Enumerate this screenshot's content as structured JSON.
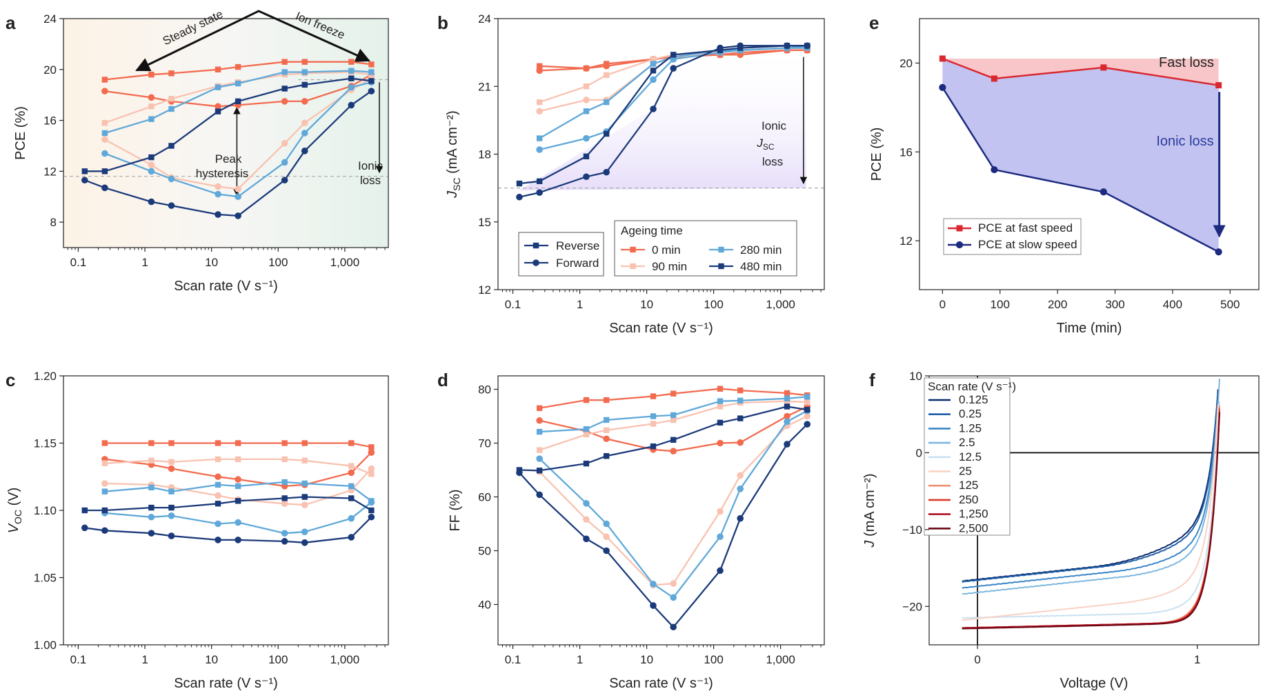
{
  "chart_data": [
    {
      "type": "line",
      "panel": "a",
      "xlabel": "Scan rate (V s⁻¹)",
      "ylabel": "PCE (%)",
      "xscale": "log",
      "xlim": [
        0.06,
        4500
      ],
      "ylim": [
        6,
        24
      ],
      "xticks": [
        0.1,
        1,
        10,
        100,
        1000
      ],
      "xticklabels": [
        "0.1",
        "1",
        "10",
        "100",
        "1,000"
      ],
      "yticks": [
        8,
        12,
        16,
        20,
        24
      ],
      "yticklabels": [
        "8",
        "12",
        "16",
        "20",
        "24"
      ],
      "x": [
        0.125,
        0.25,
        1.25,
        2.5,
        12.5,
        25,
        125,
        250,
        1250,
        2500
      ],
      "series": [
        {
          "color": "#f26b4f",
          "marker": "square",
          "values": [
            null,
            19.2,
            19.6,
            19.7,
            20.0,
            20.2,
            20.6,
            20.6,
            20.6,
            20.4
          ]
        },
        {
          "color": "#f26b4f",
          "marker": "circle",
          "values": [
            null,
            18.3,
            17.8,
            17.5,
            17.1,
            17.2,
            17.5,
            17.5,
            18.7,
            19.6
          ]
        },
        {
          "color": "#f9c2b0",
          "marker": "square",
          "values": [
            null,
            15.8,
            17.1,
            17.7,
            18.7,
            19.0,
            19.6,
            19.7,
            19.8,
            19.6
          ]
        },
        {
          "color": "#f9c2b0",
          "marker": "circle",
          "values": [
            null,
            14.5,
            12.5,
            11.5,
            10.8,
            10.6,
            14.2,
            15.8,
            18.4,
            19.3
          ]
        },
        {
          "color": "#5fa8d9",
          "marker": "square",
          "values": [
            null,
            15.0,
            16.1,
            16.9,
            18.6,
            18.9,
            19.8,
            19.8,
            19.9,
            19.8
          ]
        },
        {
          "color": "#5fa8d9",
          "marker": "circle",
          "values": [
            null,
            13.4,
            12.0,
            11.4,
            10.2,
            10.0,
            12.7,
            15.0,
            18.6,
            19.0
          ]
        },
        {
          "color": "#1b3a7a",
          "marker": "square",
          "values": [
            12.0,
            12.0,
            13.1,
            14.0,
            16.7,
            17.5,
            18.5,
            18.8,
            19.3,
            19.1
          ]
        },
        {
          "color": "#1b3a7a",
          "marker": "circle",
          "values": [
            11.3,
            10.7,
            9.6,
            9.3,
            8.6,
            8.5,
            11.3,
            13.6,
            17.2,
            18.3
          ]
        }
      ],
      "annotations": [
        "Steady state",
        "Ion freeze",
        "Peak",
        "hysteresis",
        "Ionic",
        "loss"
      ]
    },
    {
      "type": "line",
      "panel": "b",
      "xlabel": "Scan rate (V s⁻¹)",
      "ylabel_main": "J",
      "ylabel_sub": "SC",
      "ylabel_rest": " (mA cm⁻²)",
      "xscale": "log",
      "xlim": [
        0.06,
        4500
      ],
      "ylim": [
        12,
        24
      ],
      "xticks": [
        0.1,
        1,
        10,
        100,
        1000
      ],
      "xticklabels": [
        "0.1",
        "1",
        "10",
        "100",
        "1,000"
      ],
      "yticks": [
        12,
        15,
        18,
        21,
        24
      ],
      "yticklabels": [
        "12",
        "15",
        "18",
        "21",
        "24"
      ],
      "x": [
        0.125,
        0.25,
        1.25,
        2.5,
        12.5,
        25,
        125,
        250,
        1250,
        2500
      ],
      "series": [
        {
          "color": "#f26b4f",
          "marker": "square",
          "values": [
            null,
            21.9,
            21.8,
            22.0,
            22.2,
            22.3,
            22.4,
            22.5,
            22.6,
            22.6
          ]
        },
        {
          "color": "#f26b4f",
          "marker": "circle",
          "values": [
            null,
            21.7,
            21.8,
            21.9,
            22.2,
            22.3,
            22.4,
            22.4,
            22.6,
            22.6
          ]
        },
        {
          "color": "#f9c2b0",
          "marker": "square",
          "values": [
            null,
            20.3,
            21.0,
            21.5,
            22.2,
            22.4,
            22.5,
            22.6,
            22.7,
            22.7
          ]
        },
        {
          "color": "#f9c2b0",
          "marker": "circle",
          "values": [
            null,
            19.9,
            20.4,
            20.4,
            22.0,
            22.3,
            22.5,
            22.6,
            22.7,
            22.7
          ]
        },
        {
          "color": "#5fa8d9",
          "marker": "square",
          "values": [
            null,
            18.7,
            19.9,
            20.3,
            22.0,
            22.3,
            22.6,
            22.6,
            22.7,
            22.7
          ]
        },
        {
          "color": "#5fa8d9",
          "marker": "circle",
          "values": [
            null,
            18.2,
            18.7,
            19.0,
            21.3,
            22.2,
            22.5,
            22.6,
            22.7,
            22.8
          ]
        },
        {
          "color": "#1b3a7a",
          "marker": "square",
          "values": [
            16.7,
            16.8,
            17.9,
            18.9,
            21.7,
            22.4,
            22.6,
            22.7,
            22.8,
            22.8
          ]
        },
        {
          "color": "#1b3a7a",
          "marker": "circle",
          "values": [
            16.1,
            16.3,
            17.0,
            17.2,
            20.0,
            21.8,
            22.7,
            22.8,
            22.8,
            22.8
          ]
        }
      ],
      "annotations": [
        "Ionic",
        "J",
        "SC",
        "loss"
      ],
      "legend": {
        "title": "Ageing time",
        "style_entries": [
          {
            "label": "Reverse",
            "marker": "square"
          },
          {
            "label": "Forward",
            "marker": "circle"
          }
        ],
        "entries": [
          {
            "label": "0 min",
            "color": "#f26b4f"
          },
          {
            "label": "90 min",
            "color": "#f9c2b0"
          },
          {
            "label": "280 min",
            "color": "#5fa8d9"
          },
          {
            "label": "480 min",
            "color": "#1b3a7a"
          }
        ]
      }
    },
    {
      "type": "line",
      "panel": "c",
      "xlabel": "Scan rate (V s⁻¹)",
      "ylabel_main": "V",
      "ylabel_sub": "OC",
      "ylabel_rest": " (V)",
      "xscale": "log",
      "xlim": [
        0.06,
        4500
      ],
      "ylim": [
        1.0,
        1.2
      ],
      "xticks": [
        0.1,
        1,
        10,
        100,
        1000
      ],
      "xticklabels": [
        "0.1",
        "1",
        "10",
        "100",
        "1,000"
      ],
      "yticks": [
        1.0,
        1.05,
        1.1,
        1.15,
        1.2
      ],
      "yticklabels": [
        "1.00",
        "1.05",
        "1.10",
        "1.15",
        "1.20"
      ],
      "x": [
        0.125,
        0.25,
        1.25,
        2.5,
        12.5,
        25,
        125,
        250,
        1250,
        2500
      ],
      "series": [
        {
          "color": "#f26b4f",
          "marker": "square",
          "values": [
            null,
            1.15,
            1.15,
            1.15,
            1.15,
            1.15,
            1.15,
            1.15,
            1.15,
            1.147
          ]
        },
        {
          "color": "#f26b4f",
          "marker": "circle",
          "values": [
            null,
            1.138,
            1.134,
            1.131,
            1.125,
            1.123,
            1.118,
            1.119,
            1.128,
            1.143
          ]
        },
        {
          "color": "#f9c2b0",
          "marker": "square",
          "values": [
            null,
            1.135,
            1.137,
            1.136,
            1.138,
            1.138,
            1.138,
            1.137,
            1.133,
            1.127
          ]
        },
        {
          "color": "#f9c2b0",
          "marker": "circle",
          "values": [
            null,
            1.12,
            1.119,
            1.117,
            1.111,
            1.108,
            1.105,
            1.104,
            1.115,
            1.131
          ]
        },
        {
          "color": "#5fa8d9",
          "marker": "square",
          "values": [
            null,
            1.114,
            1.117,
            1.114,
            1.119,
            1.118,
            1.121,
            1.12,
            1.118,
            1.107
          ]
        },
        {
          "color": "#5fa8d9",
          "marker": "circle",
          "values": [
            null,
            1.098,
            1.095,
            1.096,
            1.09,
            1.091,
            1.083,
            1.084,
            1.094,
            1.106
          ]
        },
        {
          "color": "#1b3a7a",
          "marker": "square",
          "values": [
            1.1,
            1.1,
            1.102,
            1.102,
            1.105,
            1.107,
            1.109,
            1.11,
            1.109,
            1.1
          ]
        },
        {
          "color": "#1b3a7a",
          "marker": "circle",
          "values": [
            1.087,
            1.085,
            1.083,
            1.081,
            1.078,
            1.078,
            1.077,
            1.076,
            1.08,
            1.095
          ]
        }
      ]
    },
    {
      "type": "line",
      "panel": "d",
      "xlabel": "Scan rate (V s⁻¹)",
      "ylabel": "FF (%)",
      "xscale": "log",
      "xlim": [
        0.06,
        4500
      ],
      "ylim": [
        32.5,
        82.5
      ],
      "xticks": [
        0.1,
        1,
        10,
        100,
        1000
      ],
      "xticklabels": [
        "0.1",
        "1",
        "10",
        "100",
        "1,000"
      ],
      "yticks": [
        40,
        50,
        60,
        70,
        80
      ],
      "yticklabels": [
        "40",
        "50",
        "60",
        "70",
        "80"
      ],
      "x": [
        0.125,
        0.25,
        1.25,
        2.5,
        12.5,
        25,
        125,
        250,
        1250,
        2500
      ],
      "series": [
        {
          "color": "#f26b4f",
          "marker": "square",
          "values": [
            null,
            76.5,
            78.0,
            78.0,
            78.7,
            79.2,
            80.1,
            79.8,
            79.3,
            78.9
          ]
        },
        {
          "color": "#f26b4f",
          "marker": "circle",
          "values": [
            null,
            74.2,
            72.2,
            70.8,
            68.8,
            68.5,
            70.0,
            70.1,
            75.0,
            76.8
          ]
        },
        {
          "color": "#f9c2b0",
          "marker": "square",
          "values": [
            null,
            68.7,
            71.6,
            72.4,
            73.6,
            74.3,
            76.8,
            77.5,
            77.8,
            77.6
          ]
        },
        {
          "color": "#f9c2b0",
          "marker": "circle",
          "values": [
            null,
            64.7,
            55.8,
            52.6,
            43.6,
            43.9,
            57.3,
            64.0,
            73.2,
            75.0
          ]
        },
        {
          "color": "#5fa8d9",
          "marker": "square",
          "values": [
            null,
            72.1,
            72.6,
            74.3,
            75.0,
            75.2,
            77.8,
            77.9,
            78.3,
            78.6
          ]
        },
        {
          "color": "#5fa8d9",
          "marker": "circle",
          "values": [
            null,
            67.1,
            58.8,
            55.0,
            43.8,
            41.3,
            52.6,
            61.5,
            74.0,
            76.0
          ]
        },
        {
          "color": "#1b3a7a",
          "marker": "square",
          "values": [
            65.0,
            64.9,
            66.2,
            67.6,
            69.4,
            70.6,
            73.8,
            74.6,
            76.8,
            76.2
          ]
        },
        {
          "color": "#1b3a7a",
          "marker": "circle",
          "values": [
            64.5,
            60.4,
            52.2,
            50.0,
            39.8,
            35.8,
            46.3,
            56.0,
            69.8,
            73.5
          ]
        }
      ]
    },
    {
      "type": "line",
      "panel": "e",
      "xlabel": "Time (min)",
      "ylabel": "PCE (%)",
      "xlim": [
        -40,
        550
      ],
      "ylim": [
        9.8,
        22
      ],
      "xticks": [
        0,
        100,
        200,
        300,
        400,
        500
      ],
      "xticklabels": [
        "0",
        "100",
        "200",
        "300",
        "400",
        "500"
      ],
      "yticks": [
        12,
        16,
        20
      ],
      "yticklabels": [
        "12",
        "16",
        "20"
      ],
      "x": [
        0,
        90,
        280,
        480
      ],
      "series": [
        {
          "name": "PCE at fast speed",
          "color": "#d9282f",
          "marker": "square",
          "values": [
            20.2,
            19.3,
            19.8,
            19.0
          ]
        },
        {
          "name": "PCE at slow speed",
          "color": "#1c2a80",
          "marker": "circle",
          "values": [
            18.9,
            15.2,
            14.2,
            11.5
          ]
        }
      ],
      "fill_fast_color": "#f6b8bc",
      "fill_slow_color": "#b9b9ef",
      "annotations": [
        "Fast loss",
        "Ionic loss"
      ]
    },
    {
      "type": "line",
      "panel": "f",
      "xlabel": "Voltage (V)",
      "ylabel_main": "J",
      "ylabel_rest": " (mA cm⁻²)",
      "xlim": [
        -0.22,
        1.28
      ],
      "ylim": [
        -25,
        10
      ],
      "xticks": [
        0,
        1
      ],
      "xticklabels": [
        "0",
        "1"
      ],
      "yticks": [
        -20,
        -10,
        0,
        10
      ],
      "yticklabels": [
        "−20",
        "−10",
        "0",
        "10"
      ],
      "legend_title": "Scan rate (V s⁻¹)",
      "curves": [
        {
          "label": "0.125",
          "color": "#0b2a6b",
          "jsc": 16.7,
          "knee": 0.52
        },
        {
          "label": "0.25",
          "color": "#1f5fa8",
          "jsc": 16.8,
          "knee": 0.55
        },
        {
          "label": "1.25",
          "color": "#3b86c8",
          "jsc": 17.6,
          "knee": 0.62
        },
        {
          "label": "2.5",
          "color": "#7db7df",
          "jsc": 18.4,
          "knee": 0.66
        },
        {
          "label": "12.5",
          "color": "#c9e1f2",
          "jsc": 21.5,
          "knee": 0.72
        },
        {
          "label": "25",
          "color": "#f8d2c3",
          "jsc": 21.8,
          "knee": 0.66
        },
        {
          "label": "125",
          "color": "#ef8f72",
          "jsc": 22.8,
          "knee": 0.8
        },
        {
          "label": "250",
          "color": "#dd3b2b",
          "jsc": 22.8,
          "knee": 0.85
        },
        {
          "label": "1,250",
          "color": "#b01021",
          "jsc": 22.8,
          "knee": 0.92
        },
        {
          "label": "2,500",
          "color": "#6e0714",
          "jsc": 22.9,
          "knee": 0.95
        }
      ]
    }
  ],
  "panel_labels": [
    "a",
    "b",
    "c",
    "d",
    "e",
    "f"
  ]
}
